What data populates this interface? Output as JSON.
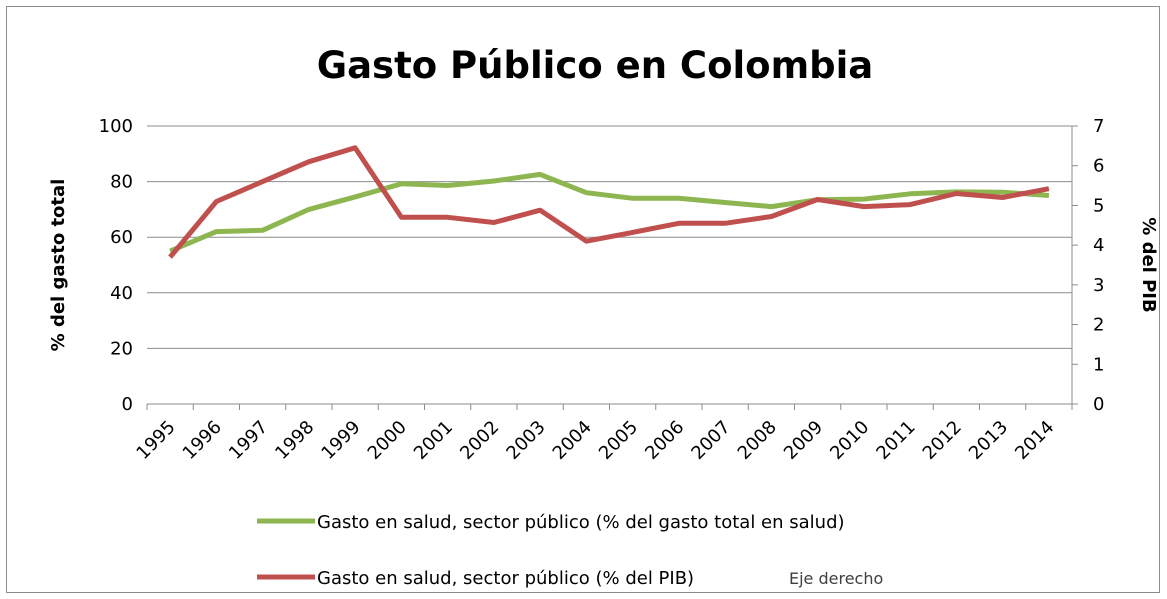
{
  "chart_data": {
    "type": "line",
    "title": "Gasto Público en Colombia",
    "ylabel": "% del gasto total",
    "y2label": "% del PIB",
    "ylim": [
      0,
      100
    ],
    "y2lim": [
      0,
      7
    ],
    "yticks": [
      "0",
      "20",
      "40",
      "60",
      "80",
      "100"
    ],
    "y2ticks": [
      "0",
      "1",
      "2",
      "3",
      "4",
      "5",
      "6",
      "7"
    ],
    "categories": [
      "1995",
      "1996",
      "1997",
      "1998",
      "1999",
      "2000",
      "2001",
      "2002",
      "2003",
      "2004",
      "2005",
      "2006",
      "2007",
      "2008",
      "2009",
      "2010",
      "2011",
      "2012",
      "2013",
      "2014"
    ],
    "grid": true,
    "legend_position": "bottom",
    "series": [
      {
        "name": "Gasto en salud, sector público (% del gasto total en salud)",
        "axis": "left",
        "color": "#8db650",
        "values": [
          55,
          62,
          62.5,
          70,
          74.5,
          79.2,
          78.6,
          80.2,
          82.6,
          76,
          74,
          74,
          72.5,
          71,
          73.5,
          73.7,
          75.6,
          76.3,
          76.2,
          75
        ]
      },
      {
        "name": "Gasto en salud, sector público (% del PIB)",
        "axis": "right",
        "color": "#c0504d",
        "values": [
          3.7,
          5.1,
          5.6,
          6.1,
          6.45,
          4.7,
          4.7,
          4.57,
          4.88,
          4.1,
          4.32,
          4.55,
          4.55,
          4.72,
          5.15,
          4.97,
          5.02,
          5.3,
          5.2,
          5.42
        ]
      }
    ],
    "annotations": [
      "Eje derecho"
    ]
  }
}
